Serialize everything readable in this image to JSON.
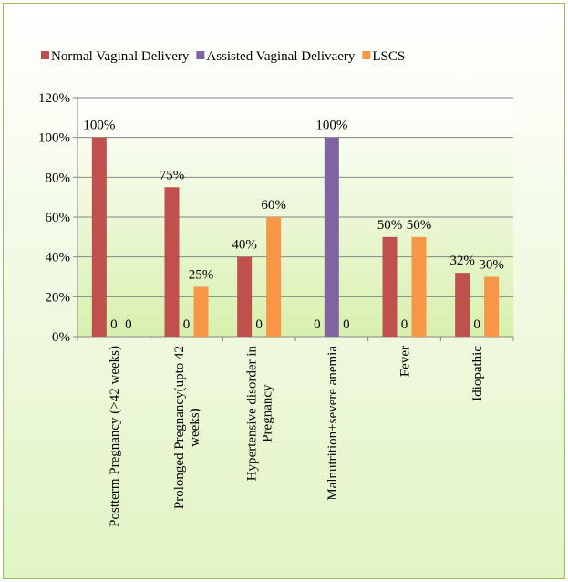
{
  "chart_data": {
    "type": "bar",
    "categories": [
      "Postterm Pregnancy (>42 weeks)",
      "Prolonged Pregnancy(upto 42 weeks)",
      "Hypertensive disorder in Pregnancy",
      "Malnutrition+severe anemia",
      "Fever",
      "Idiopathic"
    ],
    "series": [
      {
        "name": "Normal Vaginal Delivery",
        "color": "#c0504d",
        "values": [
          100,
          75,
          40,
          0,
          50,
          32
        ],
        "value_labels": [
          "100%",
          "75%",
          "40%",
          "0",
          "50%",
          "32%"
        ]
      },
      {
        "name": "Assisted Vaginal Delivaery",
        "color": "#8064a2",
        "values": [
          0,
          0,
          0,
          100,
          0,
          0
        ],
        "value_labels": [
          "0",
          "0",
          "0",
          "100%",
          "0",
          "0"
        ]
      },
      {
        "name": "LSCS",
        "color": "#f79646",
        "values": [
          0,
          25,
          60,
          0,
          50,
          30
        ],
        "value_labels": [
          "0",
          "25%",
          "60%",
          "0",
          "50%",
          "30%"
        ]
      }
    ],
    "ylim": [
      0,
      120
    ],
    "yticks": [
      {
        "value": 0,
        "label": "0%"
      },
      {
        "value": 20,
        "label": "20%"
      },
      {
        "value": 40,
        "label": "40%"
      },
      {
        "value": 60,
        "label": "60%"
      },
      {
        "value": 80,
        "label": "80%"
      },
      {
        "value": 100,
        "label": "100%"
      },
      {
        "value": 120,
        "label": "120%"
      }
    ],
    "grid": true,
    "legend": "top"
  }
}
